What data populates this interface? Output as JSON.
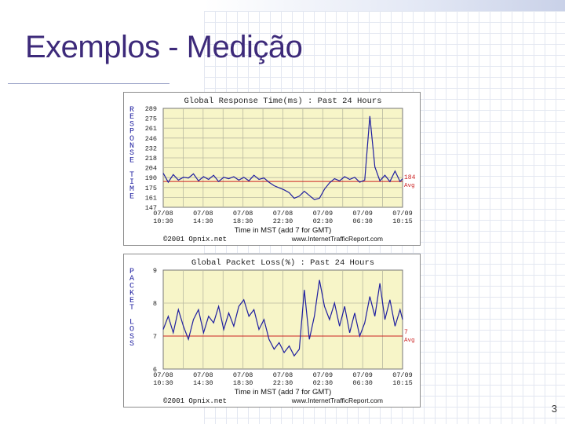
{
  "slide": {
    "title": "Exemplos - Medição",
    "page_number": "3"
  },
  "chart_data": [
    {
      "type": "line",
      "title": "Global Response Time(ms) : Past 24 Hours",
      "ylabel": "RESPONSE TIME",
      "xlabel": "Time in MST (add 7 for GMT)",
      "footer_left": "©2001 Opnix.net",
      "footer_right": "www.InternetTrafficReport.com",
      "ylim": [
        147,
        289
      ],
      "yticks": [
        "289",
        "275",
        "261",
        "246",
        "232",
        "218",
        "204",
        "190",
        "175",
        "161",
        "147"
      ],
      "xticks": [
        {
          "date": "07/08",
          "time": "10:30"
        },
        {
          "date": "07/08",
          "time": "14:30"
        },
        {
          "date": "07/08",
          "time": "18:30"
        },
        {
          "date": "07/08",
          "time": "22:30"
        },
        {
          "date": "07/09",
          "time": "02:30"
        },
        {
          "date": "07/09",
          "time": "06:30"
        },
        {
          "date": "07/09",
          "time": "10:15"
        }
      ],
      "avg": {
        "value": 184,
        "label": "184",
        "sublabel": "Avg"
      },
      "line_color": "#1f1fa0",
      "avg_color": "#cc2222",
      "series": [
        {
          "x_hours": [
            0,
            0.5,
            1,
            1.5,
            2,
            2.5,
            3,
            3.5,
            4,
            4.5,
            5,
            5.5,
            6,
            6.5,
            7,
            7.5,
            8,
            8.5,
            9,
            9.5,
            10,
            10.5,
            11,
            11.5,
            12,
            12.5,
            13,
            13.5,
            14,
            14.5,
            15,
            15.5,
            16,
            16.5,
            17,
            17.5,
            18,
            18.5,
            19,
            19.5,
            20,
            20.5,
            21,
            21.5,
            22,
            22.5,
            23,
            23.5,
            23.75
          ],
          "values": [
            196,
            183,
            194,
            186,
            190,
            189,
            195,
            185,
            191,
            187,
            193,
            184,
            190,
            188,
            191,
            186,
            190,
            185,
            193,
            187,
            189,
            183,
            178,
            175,
            172,
            168,
            160,
            163,
            170,
            164,
            158,
            160,
            173,
            182,
            188,
            185,
            191,
            187,
            190,
            183,
            186,
            278,
            205,
            185,
            193,
            184,
            199,
            184,
            188
          ]
        }
      ]
    },
    {
      "type": "line",
      "title": "Global Packet Loss(%) : Past 24 Hours",
      "ylabel": "PACKET LOSS",
      "xlabel": "Time in MST (add 7 for GMT)",
      "footer_left": "©2001 Opnix.net",
      "footer_right": "www.InternetTrafficReport.com",
      "ylim": [
        6,
        9
      ],
      "yticks": [
        "9",
        "8",
        "7",
        "6"
      ],
      "xticks": [
        {
          "date": "07/08",
          "time": "10:30"
        },
        {
          "date": "07/08",
          "time": "14:30"
        },
        {
          "date": "07/08",
          "time": "18:30"
        },
        {
          "date": "07/08",
          "time": "22:30"
        },
        {
          "date": "07/09",
          "time": "02:30"
        },
        {
          "date": "07/09",
          "time": "06:30"
        },
        {
          "date": "07/09",
          "time": "10:15"
        }
      ],
      "avg": {
        "value": 7,
        "label": "7",
        "sublabel": "Avg"
      },
      "line_color": "#1f1fa0",
      "avg_color": "#cc2222",
      "series": [
        {
          "x_hours": [
            0,
            0.5,
            1,
            1.5,
            2,
            2.5,
            3,
            3.5,
            4,
            4.5,
            5,
            5.5,
            6,
            6.5,
            7,
            7.5,
            8,
            8.5,
            9,
            9.5,
            10,
            10.5,
            11,
            11.5,
            12,
            12.5,
            13,
            13.5,
            14,
            14.5,
            15,
            15.5,
            16,
            16.5,
            17,
            17.5,
            18,
            18.5,
            19,
            19.5,
            20,
            20.5,
            21,
            21.5,
            22,
            22.5,
            23,
            23.5,
            23.75
          ],
          "values": [
            7.2,
            7.6,
            7.1,
            7.8,
            7.3,
            6.9,
            7.5,
            7.8,
            7.1,
            7.6,
            7.4,
            7.9,
            7.2,
            7.7,
            7.3,
            7.9,
            8.1,
            7.6,
            7.8,
            7.2,
            7.5,
            6.9,
            6.6,
            6.8,
            6.5,
            6.7,
            6.4,
            6.6,
            8.4,
            6.9,
            7.6,
            8.7,
            7.9,
            7.5,
            8.0,
            7.3,
            7.9,
            7.1,
            7.7,
            7.0,
            7.4,
            8.2,
            7.6,
            8.6,
            7.5,
            8.1,
            7.3,
            7.8,
            7.5
          ]
        }
      ]
    }
  ]
}
